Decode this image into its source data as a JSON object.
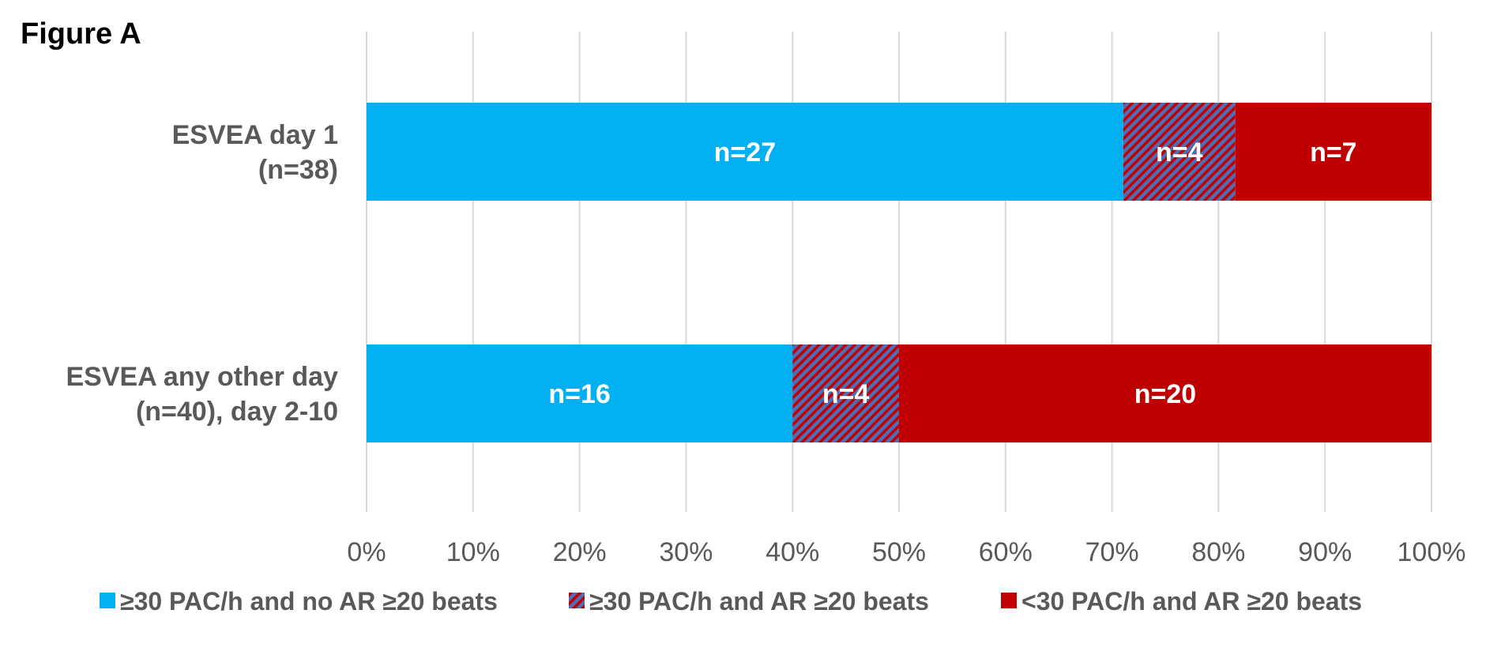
{
  "figure_label": "Figure A",
  "chart_data": {
    "type": "bar",
    "orientation": "horizontal",
    "stacked": "percent",
    "categories": [
      [
        "ESVEA day 1",
        "(n=38)"
      ],
      [
        "ESVEA any other day",
        "(n=40), day 2-10"
      ]
    ],
    "series": [
      {
        "name": "≥30 PAC/h and no AR ≥20 beats",
        "color": "#00B0F0",
        "pattern": "solid",
        "values": [
          27,
          16
        ],
        "labels": [
          "n=27",
          "n=16"
        ]
      },
      {
        "name": "≥30 PAC/h and AR ≥20 beats",
        "color": "#4E6DB5",
        "stripe_color": "#C00000",
        "pattern": "diagonal-stripes",
        "values": [
          4,
          4
        ],
        "labels": [
          "n=4",
          "n=4"
        ]
      },
      {
        "name": "<30 PAC/h and AR ≥20 beats",
        "color": "#C00000",
        "pattern": "solid",
        "values": [
          7,
          20
        ],
        "labels": [
          "n=7",
          "n=20"
        ]
      }
    ],
    "x_ticks": [
      "0%",
      "10%",
      "20%",
      "30%",
      "40%",
      "50%",
      "60%",
      "70%",
      "80%",
      "90%",
      "100%"
    ],
    "xlim": [
      0,
      100
    ],
    "grid": "vertical",
    "legend": "bottom"
  }
}
